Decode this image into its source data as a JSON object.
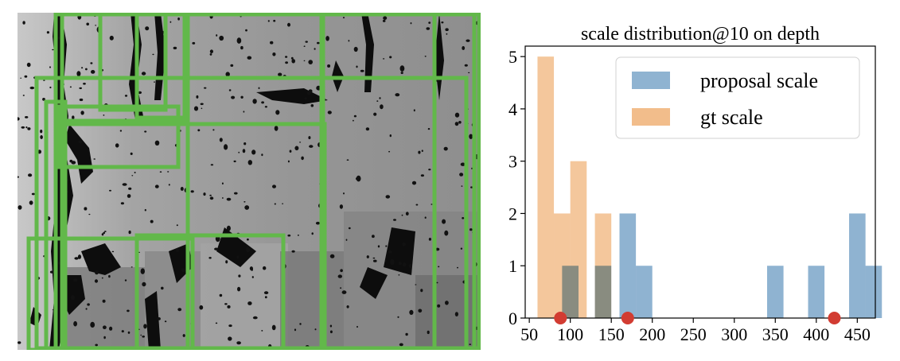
{
  "depth_image": {
    "box_color": "#62b84a",
    "background_color": "#9b9b9b"
  },
  "chart_data": {
    "type": "bar",
    "title": "scale distribution@10 on depth",
    "xlabel": "",
    "ylabel": "",
    "xlim": [
      45,
      472
    ],
    "ylim": [
      0,
      5.2
    ],
    "x_ticks": [
      50,
      100,
      150,
      200,
      250,
      300,
      350,
      400,
      450
    ],
    "y_ticks": [
      0,
      1,
      2,
      3,
      4,
      5
    ],
    "bin_width": 20,
    "series": [
      {
        "name": "proposal scale",
        "color": "#8fb3d1",
        "bins": [
          {
            "x": 100,
            "value": 1
          },
          {
            "x": 140,
            "value": 1
          },
          {
            "x": 170,
            "value": 2
          },
          {
            "x": 190,
            "value": 1
          },
          {
            "x": 350,
            "value": 1
          },
          {
            "x": 400,
            "value": 1
          },
          {
            "x": 450,
            "value": 2
          },
          {
            "x": 470,
            "value": 1
          }
        ]
      },
      {
        "name": "gt scale",
        "color": "#f2bd8b",
        "bins": [
          {
            "x": 70,
            "value": 5
          },
          {
            "x": 90,
            "value": 2
          },
          {
            "x": 110,
            "value": 3
          },
          {
            "x": 140,
            "value": 2
          }
        ]
      }
    ],
    "markers": {
      "color": "#d23c32",
      "x": [
        88,
        170,
        422
      ],
      "y": 0
    },
    "legend_position": "top-right",
    "grid": false
  }
}
